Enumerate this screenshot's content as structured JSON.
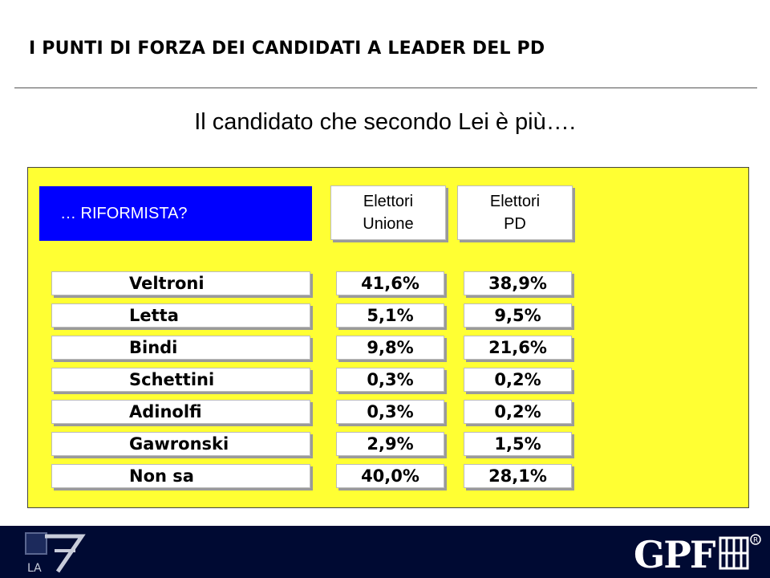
{
  "page": {
    "title": "I PUNTI DI FORZA DEI CANDIDATI A LEADER DEL PD",
    "subtitle": "Il candidato che secondo Lei è più…."
  },
  "panel": {
    "question": "… RIFORMISTA?",
    "column_headers": [
      {
        "line1": "Elettori",
        "line2": "Unione"
      },
      {
        "line1": "Elettori",
        "line2": "PD"
      }
    ],
    "rows": [
      {
        "name": "Veltroni",
        "elettori_unione": "41,6%",
        "elettori_pd": "38,9%"
      },
      {
        "name": "Letta",
        "elettori_unione": "5,1%",
        "elettori_pd": "9,5%"
      },
      {
        "name": "Bindi",
        "elettori_unione": "9,8%",
        "elettori_pd": "21,6%"
      },
      {
        "name": "Schettini",
        "elettori_unione": "0,3%",
        "elettori_pd": "0,2%"
      },
      {
        "name": "Adinolfi",
        "elettori_unione": "0,3%",
        "elettori_pd": "0,2%"
      },
      {
        "name": "Gawronski",
        "elettori_unione": "2,9%",
        "elettori_pd": "1,5%"
      },
      {
        "name": "Non sa",
        "elettori_unione": "40,0%",
        "elettori_pd": "28,1%"
      }
    ]
  },
  "footer": {
    "left_logo": "LA 7",
    "right_logo": "GPF",
    "colors": {
      "background": "#000a33",
      "panel": "#ffff33",
      "question_box": "#0000ff"
    }
  }
}
